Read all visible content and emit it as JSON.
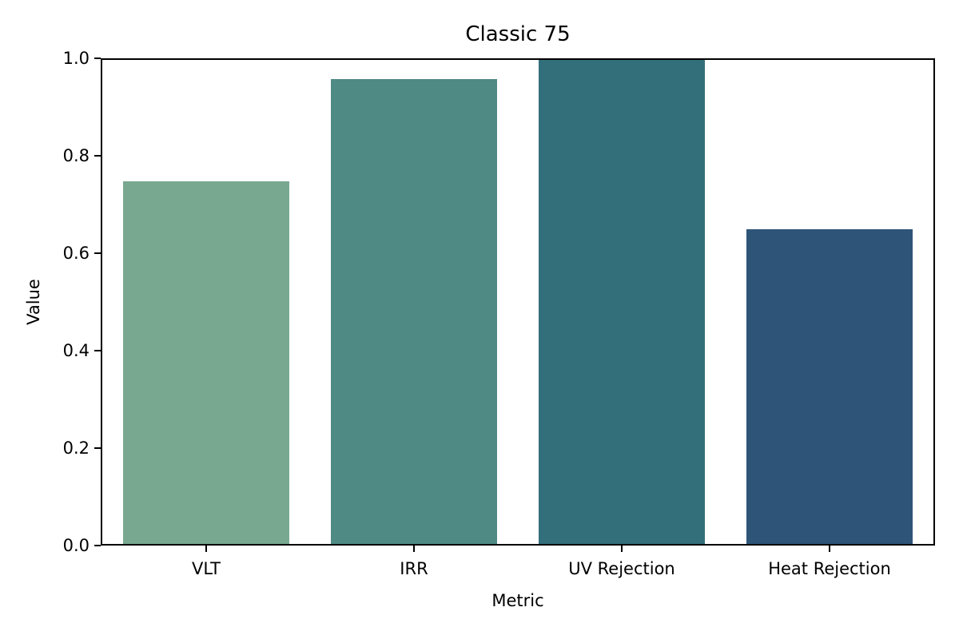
{
  "chart_data": {
    "type": "bar",
    "title": "Classic 75",
    "xlabel": "Metric",
    "ylabel": "Value",
    "categories": [
      "VLT",
      "IRR",
      "UV Rejection",
      "Heat Rejection"
    ],
    "values": [
      0.75,
      0.96,
      1.0,
      0.65
    ],
    "colors": [
      "#78a890",
      "#4f8a85",
      "#336e7b",
      "#2e5478"
    ],
    "ylim": [
      0,
      1.0
    ],
    "yticks": [
      "0.0",
      "0.2",
      "0.4",
      "0.6",
      "0.8",
      "1.0"
    ],
    "grid": false,
    "legend": null
  }
}
